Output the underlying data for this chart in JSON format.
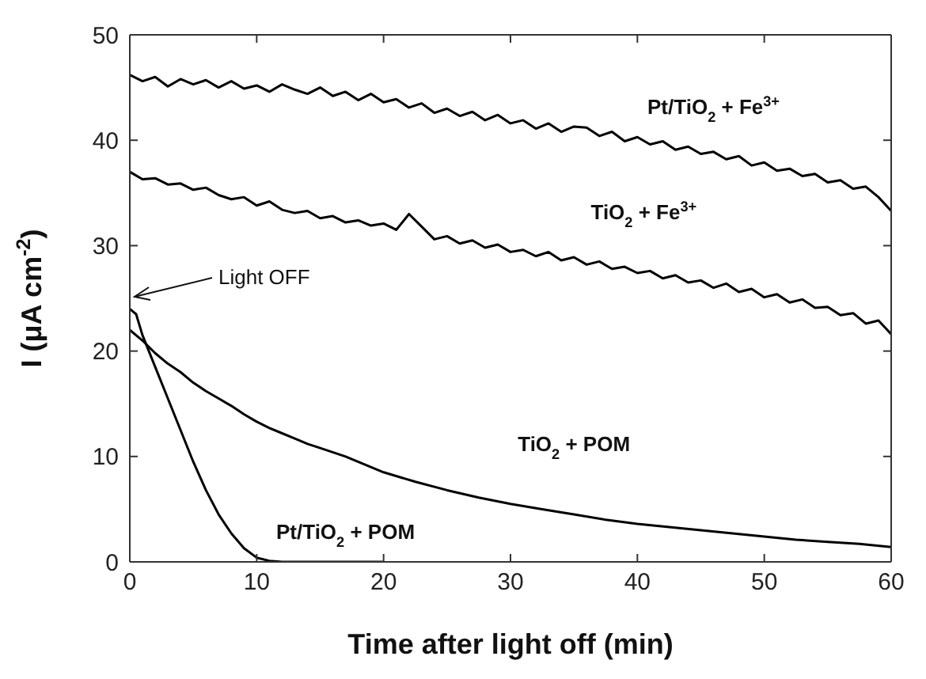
{
  "chart_data": {
    "type": "line",
    "xlabel": "Time after light off (min)",
    "ylabel": "I (μA cm$^{-2}$)",
    "xlim": [
      0,
      60
    ],
    "ylim": [
      0,
      50
    ],
    "xticks": [
      0,
      10,
      20,
      30,
      40,
      50,
      60
    ],
    "yticks": [
      0,
      10,
      20,
      30,
      40,
      50
    ],
    "marker": "none",
    "line_style": "solid",
    "annotations": [
      "Light OFF"
    ],
    "series": [
      {
        "name": "Pt/TiO$_{2}$ + Fe$^{3+}$",
        "color": "#000000",
        "x": [
          0,
          1,
          2,
          3,
          4,
          5,
          6,
          7,
          8,
          9,
          10,
          11,
          12,
          13,
          14,
          15,
          16,
          17,
          18,
          19,
          20,
          21,
          22,
          23,
          24,
          25,
          26,
          27,
          28,
          29,
          30,
          31,
          32,
          33,
          34,
          35,
          36,
          37,
          38,
          39,
          40,
          41,
          42,
          43,
          44,
          45,
          46,
          47,
          48,
          49,
          50,
          51,
          52,
          53,
          54,
          55,
          56,
          57,
          58,
          59,
          60
        ],
        "values": [
          46.2,
          45.6,
          46,
          45.1,
          45.8,
          45.3,
          45.7,
          45,
          45.6,
          44.9,
          45.2,
          44.6,
          45.3,
          44.8,
          44.4,
          45,
          44.2,
          44.6,
          43.8,
          44.4,
          43.6,
          43.9,
          43.1,
          43.5,
          42.6,
          43,
          42.3,
          42.7,
          41.9,
          42.4,
          41.6,
          41.9,
          41.1,
          41.6,
          40.8,
          41.3,
          41.2,
          40.4,
          40.8,
          39.9,
          40.3,
          39.6,
          39.9,
          39.1,
          39.4,
          38.7,
          38.9,
          38.2,
          38.5,
          37.6,
          37.9,
          37.1,
          37.3,
          36.6,
          36.8,
          36,
          36.2,
          35.4,
          35.6,
          34.6,
          33.3
        ]
      },
      {
        "name": "TiO$_{2}$ + Fe$^{3+}$",
        "color": "#000000",
        "x": [
          0,
          1,
          2,
          3,
          4,
          5,
          6,
          7,
          8,
          9,
          10,
          11,
          12,
          13,
          14,
          15,
          16,
          17,
          18,
          19,
          20,
          21,
          22,
          23,
          24,
          25,
          26,
          27,
          28,
          29,
          30,
          31,
          32,
          33,
          34,
          35,
          36,
          37,
          38,
          39,
          40,
          41,
          42,
          43,
          44,
          45,
          46,
          47,
          48,
          49,
          50,
          51,
          52,
          53,
          54,
          55,
          56,
          57,
          58,
          59,
          60
        ],
        "values": [
          37,
          36.3,
          36.4,
          35.8,
          35.9,
          35.3,
          35.5,
          34.8,
          34.4,
          34.6,
          33.8,
          34.2,
          33.4,
          33.1,
          33.3,
          32.6,
          32.8,
          32.2,
          32.4,
          31.9,
          32.1,
          31.5,
          33,
          31.8,
          30.6,
          30.9,
          30.2,
          30.5,
          29.8,
          30.1,
          29.4,
          29.6,
          29,
          29.4,
          28.6,
          28.9,
          28.2,
          28.5,
          27.8,
          28,
          27.4,
          27.6,
          26.9,
          27.2,
          26.5,
          26.7,
          26,
          26.4,
          25.6,
          25.9,
          25.1,
          25.4,
          24.6,
          24.9,
          24.1,
          24.2,
          23.4,
          23.6,
          22.6,
          22.9,
          21.6
        ]
      },
      {
        "name": "TiO$_{2}$ + POM",
        "color": "#000000",
        "x": [
          0,
          1,
          2,
          3,
          4,
          5,
          6,
          7,
          8,
          9,
          10,
          11,
          12,
          13,
          14,
          15,
          17,
          20,
          22.5,
          25,
          27.5,
          30,
          32.5,
          35,
          37.5,
          40,
          42.5,
          45,
          47.5,
          50,
          52.5,
          55,
          57.5,
          60
        ],
        "values": [
          22,
          21,
          19.8,
          18.8,
          18,
          17,
          16.2,
          15.5,
          14.8,
          14,
          13.3,
          12.7,
          12.2,
          11.7,
          11.2,
          10.8,
          10,
          8.5,
          7.6,
          6.8,
          6.1,
          5.5,
          5,
          4.5,
          4,
          3.6,
          3.3,
          3,
          2.7,
          2.4,
          2.1,
          1.9,
          1.7,
          1.4
        ]
      },
      {
        "name": "Pt/TiO$_{2}$ + POM",
        "color": "#000000",
        "x": [
          0,
          0.5,
          1,
          2,
          3,
          4,
          5,
          6,
          7,
          8,
          9,
          10,
          11,
          12,
          15,
          20
        ],
        "values": [
          24,
          23.5,
          21.5,
          18.5,
          15.5,
          12.5,
          9.5,
          6.8,
          4.5,
          2.7,
          1.3,
          0.4,
          0.1,
          0,
          0,
          0
        ]
      }
    ]
  }
}
